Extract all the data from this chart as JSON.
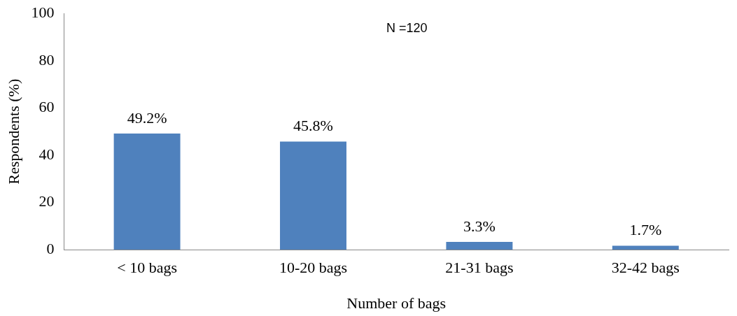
{
  "chart_data": {
    "type": "bar",
    "xlabel": "Number of bags",
    "ylabel": "Respondents (%)",
    "categories": [
      "< 10 bags",
      "10-20 bags",
      "21-31 bags",
      "32-42 bags"
    ],
    "values": [
      49.2,
      45.8,
      3.3,
      1.7
    ],
    "value_labels": [
      "49.2%",
      "45.8%",
      "3.3%",
      "1.7%"
    ],
    "color": "#4f81bd",
    "ylim": [
      0,
      100
    ],
    "yticks": [
      0,
      20,
      40,
      60,
      80,
      100
    ],
    "grid": false,
    "annotations": [
      "N =120"
    ]
  }
}
